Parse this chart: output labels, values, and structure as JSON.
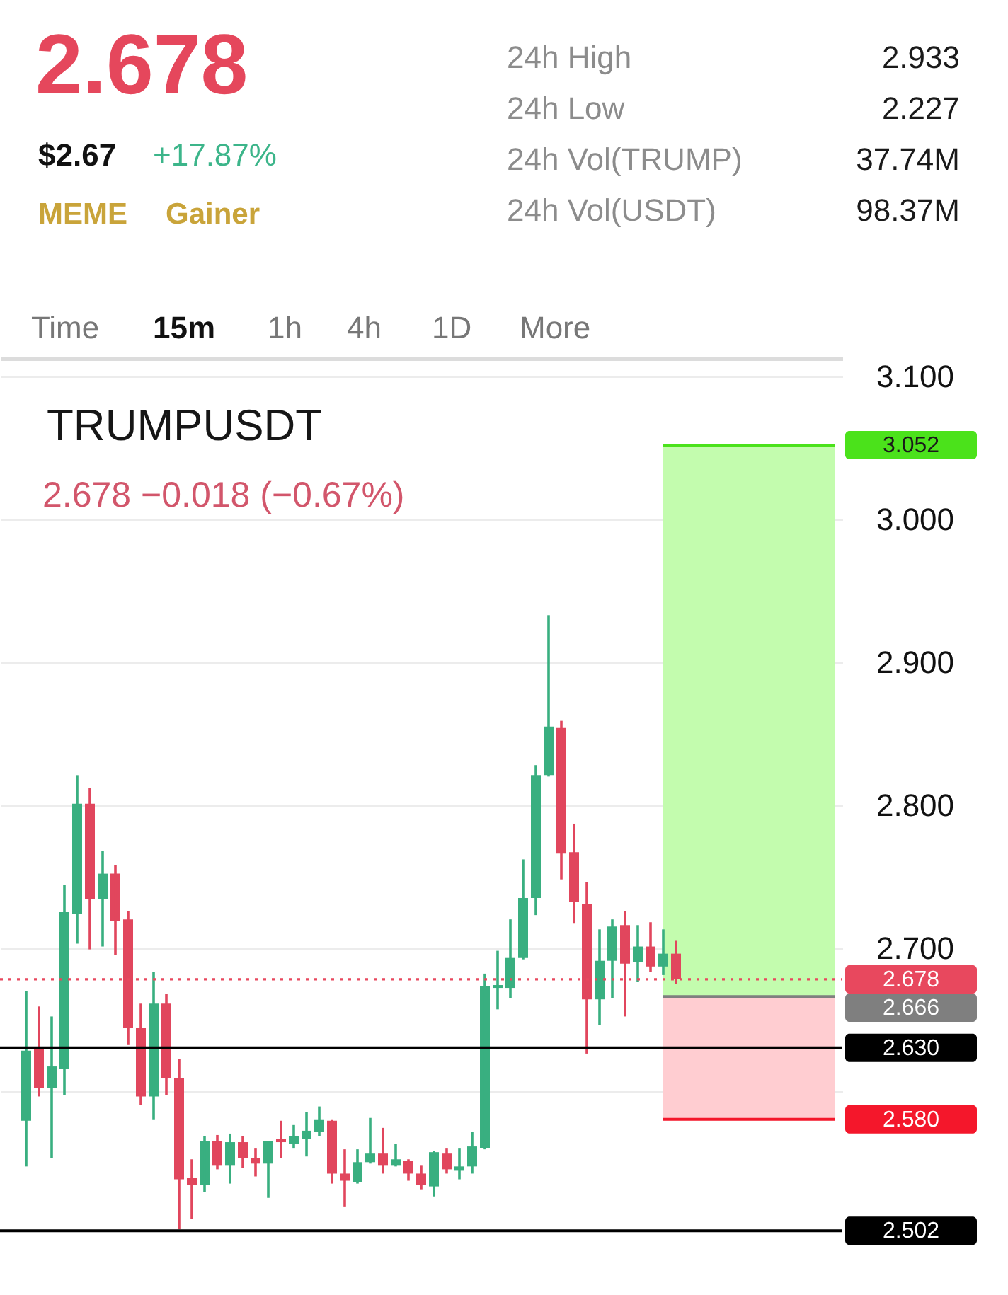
{
  "chart_data": {
    "type": "candlestick",
    "title": "TRUMPUSDT",
    "subtitle": "2.678 −0.018 (−0.67%)",
    "categories": [
      null,
      null,
      null,
      null,
      null,
      null,
      null,
      null,
      null,
      null,
      null,
      null,
      null,
      null,
      null,
      null,
      null,
      null,
      null,
      null,
      null,
      null,
      null,
      null,
      null,
      null,
      null,
      null,
      null,
      null,
      null,
      null,
      null,
      null,
      null,
      null,
      null,
      null,
      null,
      null,
      null,
      null,
      null,
      null,
      null,
      null,
      null,
      null,
      null,
      null,
      null,
      null,
      null,
      null,
      null,
      null,
      null,
      null,
      null,
      null,
      null,
      null,
      null,
      null,
      null
    ],
    "ohlc": [
      null,
      [
        2.579,
        2.67,
        2.547,
        2.628
      ],
      [
        2.629,
        2.659,
        2.596,
        2.602
      ],
      [
        2.602,
        2.652,
        2.553,
        2.617
      ],
      [
        2.615,
        2.744,
        2.597,
        2.725
      ],
      [
        2.724,
        2.821,
        2.703,
        2.801
      ],
      [
        2.801,
        2.812,
        2.699,
        2.734
      ],
      [
        2.734,
        2.768,
        2.701,
        2.752
      ],
      [
        2.752,
        2.758,
        2.695,
        2.719
      ],
      [
        2.72,
        2.726,
        2.632,
        2.644
      ],
      [
        2.644,
        2.661,
        2.59,
        2.596
      ],
      [
        2.596,
        2.683,
        2.58,
        2.661
      ],
      [
        2.661,
        2.668,
        2.597,
        2.609
      ],
      [
        2.609,
        2.622,
        2.503,
        2.538
      ],
      [
        2.539,
        2.552,
        2.51,
        2.534
      ],
      [
        2.534,
        2.568,
        2.529,
        2.565
      ],
      [
        2.565,
        2.569,
        2.545,
        2.548
      ],
      [
        2.548,
        2.57,
        2.535,
        2.564
      ],
      [
        2.564,
        2.568,
        2.546,
        2.553
      ],
      [
        2.553,
        2.56,
        2.54,
        2.549
      ],
      [
        2.549,
        2.565,
        2.525,
        2.565
      ],
      [
        2.566,
        2.579,
        2.553,
        2.564
      ],
      [
        2.563,
        2.576,
        2.56,
        2.568
      ],
      [
        2.566,
        2.585,
        2.554,
        2.572
      ],
      [
        2.571,
        2.589,
        2.568,
        2.58
      ],
      [
        2.579,
        2.58,
        2.535,
        2.542
      ],
      [
        2.542,
        2.559,
        2.519,
        2.537
      ],
      [
        2.536,
        2.559,
        2.535,
        2.55
      ],
      [
        2.55,
        2.581,
        2.549,
        2.556
      ],
      [
        2.556,
        2.574,
        2.542,
        2.548
      ],
      [
        2.548,
        2.563,
        2.547,
        2.552
      ],
      [
        2.551,
        2.552,
        2.537,
        2.542
      ],
      [
        2.542,
        2.548,
        2.531,
        2.534
      ],
      [
        2.533,
        2.558,
        2.526,
        2.557
      ],
      [
        2.556,
        2.56,
        2.542,
        2.545
      ],
      [
        2.544,
        2.56,
        2.538,
        2.547
      ],
      [
        2.547,
        2.571,
        2.542,
        2.561
      ],
      [
        2.56,
        2.682,
        2.559,
        2.673
      ],
      [
        2.672,
        2.698,
        2.657,
        2.674
      ],
      [
        2.672,
        2.72,
        2.665,
        2.693
      ],
      [
        2.693,
        2.762,
        2.692,
        2.735
      ],
      [
        2.735,
        2.828,
        2.723,
        2.821
      ],
      [
        2.821,
        2.933,
        2.82,
        2.855
      ],
      [
        2.854,
        2.859,
        2.748,
        2.766
      ],
      [
        2.767,
        2.787,
        2.717,
        2.732
      ],
      [
        2.731,
        2.746,
        2.626,
        2.664
      ],
      [
        2.664,
        2.713,
        2.646,
        2.691
      ],
      [
        2.691,
        2.72,
        2.665,
        2.715
      ],
      [
        2.716,
        2.726,
        2.652,
        2.689
      ],
      [
        2.69,
        2.716,
        2.676,
        2.701
      ],
      [
        2.701,
        2.718,
        2.683,
        2.687
      ],
      [
        2.687,
        2.713,
        2.681,
        2.696
      ],
      [
        2.696,
        2.705,
        2.675,
        2.678
      ],
      null,
      null,
      null,
      null,
      null,
      null,
      null,
      null,
      null,
      null,
      null,
      null
    ],
    "colors": [
      null,
      "#39af80",
      "#e1465d",
      "#39af80",
      "#39af80",
      "#39af80",
      "#e1465d",
      "#39af80",
      "#e1465d",
      "#e1465d",
      "#e1465d",
      "#39af80",
      "#e1465d",
      "#e1465d",
      "#e1465d",
      "#39af80",
      "#e1465d",
      "#39af80",
      "#e1465d",
      "#e1465d",
      "#39af80",
      "#e1465d",
      "#39af80",
      "#39af80",
      "#39af80",
      "#e1465d",
      "#e1465d",
      "#39af80",
      "#39af80",
      "#e1465d",
      "#39af80",
      "#e1465d",
      "#e1465d",
      "#39af80",
      "#e1465d",
      "#39af80",
      "#39af80",
      "#39af80",
      "#39af80",
      "#39af80",
      "#39af80",
      "#39af80",
      "#39af80",
      "#e1465d",
      "#e1465d",
      "#e1465d",
      "#39af80",
      "#39af80",
      "#e1465d",
      "#39af80",
      "#e1465d",
      "#39af80",
      "#e1465d",
      null,
      null,
      null,
      null,
      null,
      null,
      null,
      null,
      null,
      null,
      null,
      null
    ],
    "ylim": [
      2.457,
      3.113
    ],
    "yticks": [
      {
        "value": 2.6,
        "label": null
      },
      {
        "value": 2.7,
        "label": "2.700"
      },
      {
        "value": 2.8,
        "label": "2.800"
      },
      {
        "value": 2.9,
        "label": "2.900"
      },
      {
        "value": 3.0,
        "label": "3.000"
      },
      {
        "value": 3.1,
        "label": "3.100"
      }
    ],
    "grid": "y",
    "tick_labels": "y",
    "bands": [
      {
        "axis": "y",
        "from": 2.666,
        "to": 3.052,
        "color": "#c3fcae"
      },
      {
        "axis": "y",
        "from": 2.58,
        "to": 2.666,
        "color": "#ffcdd1"
      }
    ],
    "ref_lines": [
      {
        "axis": "y",
        "value": 3.052,
        "label": "3.052",
        "color": "#4be21b"
      },
      {
        "axis": "y",
        "value": 2.678,
        "label": "2.678",
        "color": "#e8485e",
        "line_style": "dotted"
      },
      {
        "axis": "y",
        "value": 2.666,
        "label": "2.666",
        "color": "#7f7f7f"
      },
      {
        "axis": "y",
        "value": 2.63,
        "label": "2.630",
        "color": "#000000"
      },
      {
        "axis": "y",
        "value": 2.58,
        "label": "2.580",
        "color": "#f4172b"
      },
      {
        "axis": "y",
        "value": 2.502,
        "label": "2.502",
        "color": "#000000"
      }
    ],
    "annotations": [
      "2.678",
      "$2.67",
      "+17.87%",
      "MEME",
      "Gainer",
      "24h High",
      "2.933",
      "24h Low",
      "2.227",
      "24h Vol(TRUMP)",
      "37.74M",
      "24h Vol(USDT)",
      "98.37M",
      "Time",
      "15m",
      "1h",
      "4h",
      "1D",
      "More"
    ]
  }
}
